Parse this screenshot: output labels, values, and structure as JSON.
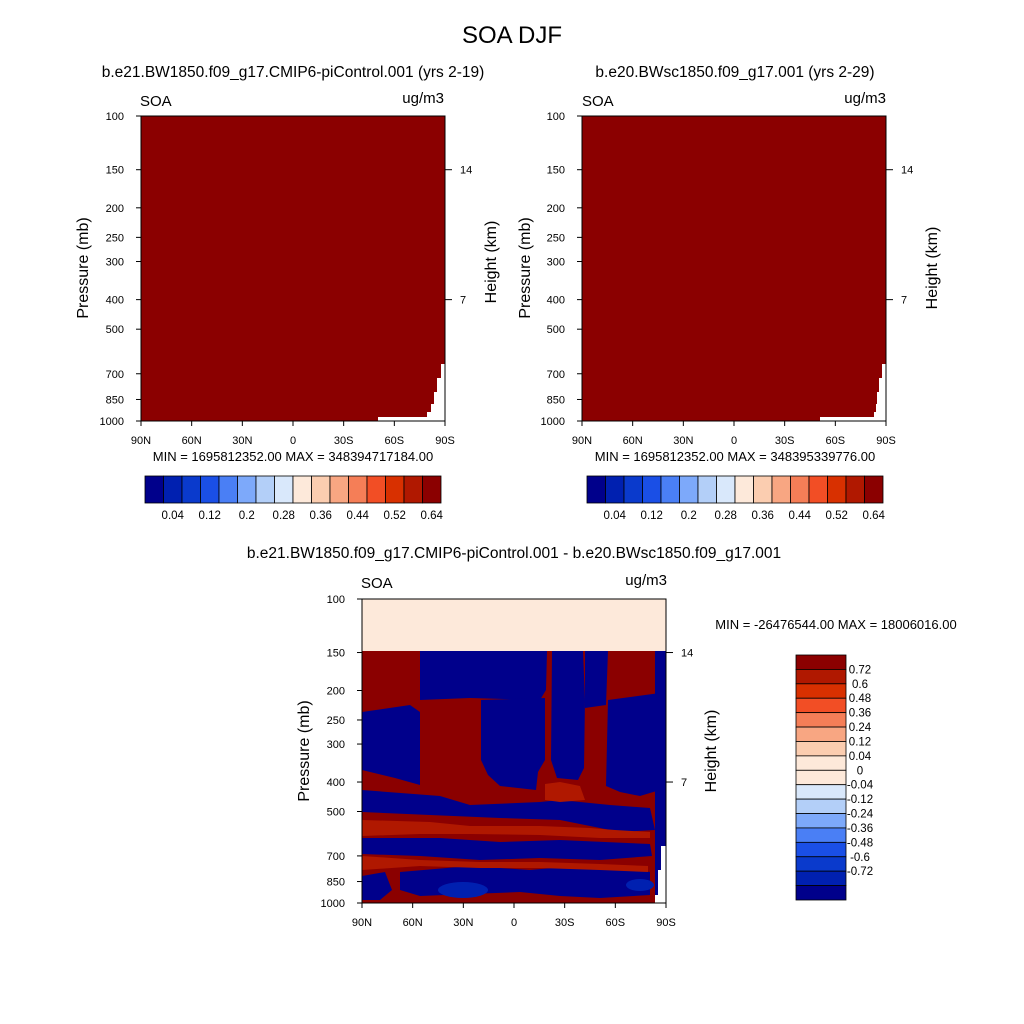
{
  "figure": {
    "title": "SOA DJF",
    "colors": {
      "high": "#8b0000",
      "low": "#00008b",
      "zero": "#fde9da",
      "background": "#ffffff"
    }
  },
  "chart_data": [
    {
      "type": "heatmap",
      "title": "b.e21.BW1850.f09_g17.CMIP6-piControl.001 (yrs 2-19)",
      "variable": "SOA",
      "units": "ug/m3",
      "ylabel": "Pressure (mb)",
      "y2label": "Height (km)",
      "y_scale": "log",
      "y_reversed": true,
      "ylim": [
        1000,
        100
      ],
      "yticks": [
        100,
        150,
        200,
        250,
        300,
        400,
        500,
        700,
        850,
        1000
      ],
      "y2ticks": [
        {
          "km": "14",
          "p": 150
        },
        {
          "km": "7",
          "p": 400
        }
      ],
      "xticks": [
        "90N",
        "60N",
        "30N",
        "0",
        "30S",
        "60S",
        "90S"
      ],
      "stats": "MIN = 1695812352.00  MAX = 348394717184.00",
      "colorbar": {
        "orientation": "horizontal",
        "colors": [
          "#00008b",
          "#0020b0",
          "#0a3acc",
          "#1a4fe6",
          "#4a7ff5",
          "#7da9fa",
          "#b3cff8",
          "#d9e8fb",
          "#fde9da",
          "#fbcdb0",
          "#f8a682",
          "#f57e57",
          "#f24e25",
          "#d83000",
          "#b01800",
          "#8b0000"
        ],
        "labels": [
          "0.04",
          "0.12",
          "0.2",
          "0.28",
          "0.36",
          "0.44",
          "0.52",
          "0.64"
        ]
      },
      "field": "entire domain at the top color (values exceed colorbar range); small missing-data wedge near 90S below ~700 mb"
    },
    {
      "type": "heatmap",
      "title": "b.e20.BWsc1850.f09_g17.001 (yrs 2-29)",
      "variable": "SOA",
      "units": "ug/m3",
      "ylabel": "Pressure (mb)",
      "y2label": "Height (km)",
      "y_scale": "log",
      "y_reversed": true,
      "ylim": [
        1000,
        100
      ],
      "yticks": [
        100,
        150,
        200,
        250,
        300,
        400,
        500,
        700,
        850,
        1000
      ],
      "y2ticks": [
        {
          "km": "14",
          "p": 150
        },
        {
          "km": "7",
          "p": 400
        }
      ],
      "xticks": [
        "90N",
        "60N",
        "30N",
        "0",
        "30S",
        "60S",
        "90S"
      ],
      "stats": "MIN = 1695812352.00  MAX = 348395339776.00",
      "colorbar": {
        "orientation": "horizontal",
        "colors": [
          "#00008b",
          "#0020b0",
          "#0a3acc",
          "#1a4fe6",
          "#4a7ff5",
          "#7da9fa",
          "#b3cff8",
          "#d9e8fb",
          "#fde9da",
          "#fbcdb0",
          "#f8a682",
          "#f57e57",
          "#f24e25",
          "#d83000",
          "#b01800",
          "#8b0000"
        ],
        "labels": [
          "0.04",
          "0.12",
          "0.2",
          "0.28",
          "0.36",
          "0.44",
          "0.52",
          "0.64"
        ]
      },
      "field": "entire domain at the top color (values exceed colorbar range); small missing-data wedge near 90S below ~700 mb"
    },
    {
      "type": "heatmap",
      "title": "b.e21.BW1850.f09_g17.CMIP6-piControl.001 - b.e20.BWsc1850.f09_g17.001",
      "variable": "SOA",
      "units": "ug/m3",
      "ylabel": "Pressure (mb)",
      "y2label": "Height (km)",
      "y_scale": "log",
      "y_reversed": true,
      "ylim": [
        1000,
        100
      ],
      "yticks": [
        100,
        150,
        200,
        250,
        300,
        400,
        500,
        700,
        850,
        1000
      ],
      "y2ticks": [
        {
          "km": "14",
          "p": 150
        },
        {
          "km": "7",
          "p": 400
        }
      ],
      "xticks": [
        "90N",
        "60N",
        "30N",
        "0",
        "30S",
        "60S",
        "90S"
      ],
      "stats": "MIN = -26476544.00  MAX = 18006016.00",
      "colorbar": {
        "orientation": "vertical",
        "colors": [
          "#8b0000",
          "#b01800",
          "#d83000",
          "#f24e25",
          "#f57e57",
          "#f8a682",
          "#fbcdb0",
          "#fde9da",
          "#fde9da",
          "#d9e8fb",
          "#b3cff8",
          "#7da9fa",
          "#4a7ff5",
          "#1a4fe6",
          "#0a3acc",
          "#0020b0",
          "#00008b"
        ],
        "labels": [
          "0.72",
          "0.6",
          "0.48",
          "0.36",
          "0.24",
          "0.12",
          "0.04",
          "0",
          "-0.04",
          "-0.12",
          "-0.24",
          "-0.36",
          "-0.48",
          "-0.6",
          "-0.72"
        ]
      },
      "field_layers": [
        {
          "pressure_range": [
            100,
            150
          ],
          "level": "0"
        },
        {
          "pressure_range": [
            150,
            1000
          ],
          "pattern": "saturated positive (>0.72) and negative (<-0.72) banded structure",
          "positive_regions": [
            "90N-70N above 230 mb",
            "60N-25N 150-420 mb",
            "15S-28S 150-420 mb",
            "55S-80S 150-430 mb",
            "mid-level bands 420-550 mb",
            "lower bands 650-900 mb"
          ],
          "negative_regions": [
            "70N-60N 150-220 mb",
            "90N-70N 230-420 mb",
            "25N-15S 150-430 mb",
            "28S-55S 150-430 mb",
            "near-surface 850-1000 mb cells"
          ]
        }
      ]
    }
  ]
}
